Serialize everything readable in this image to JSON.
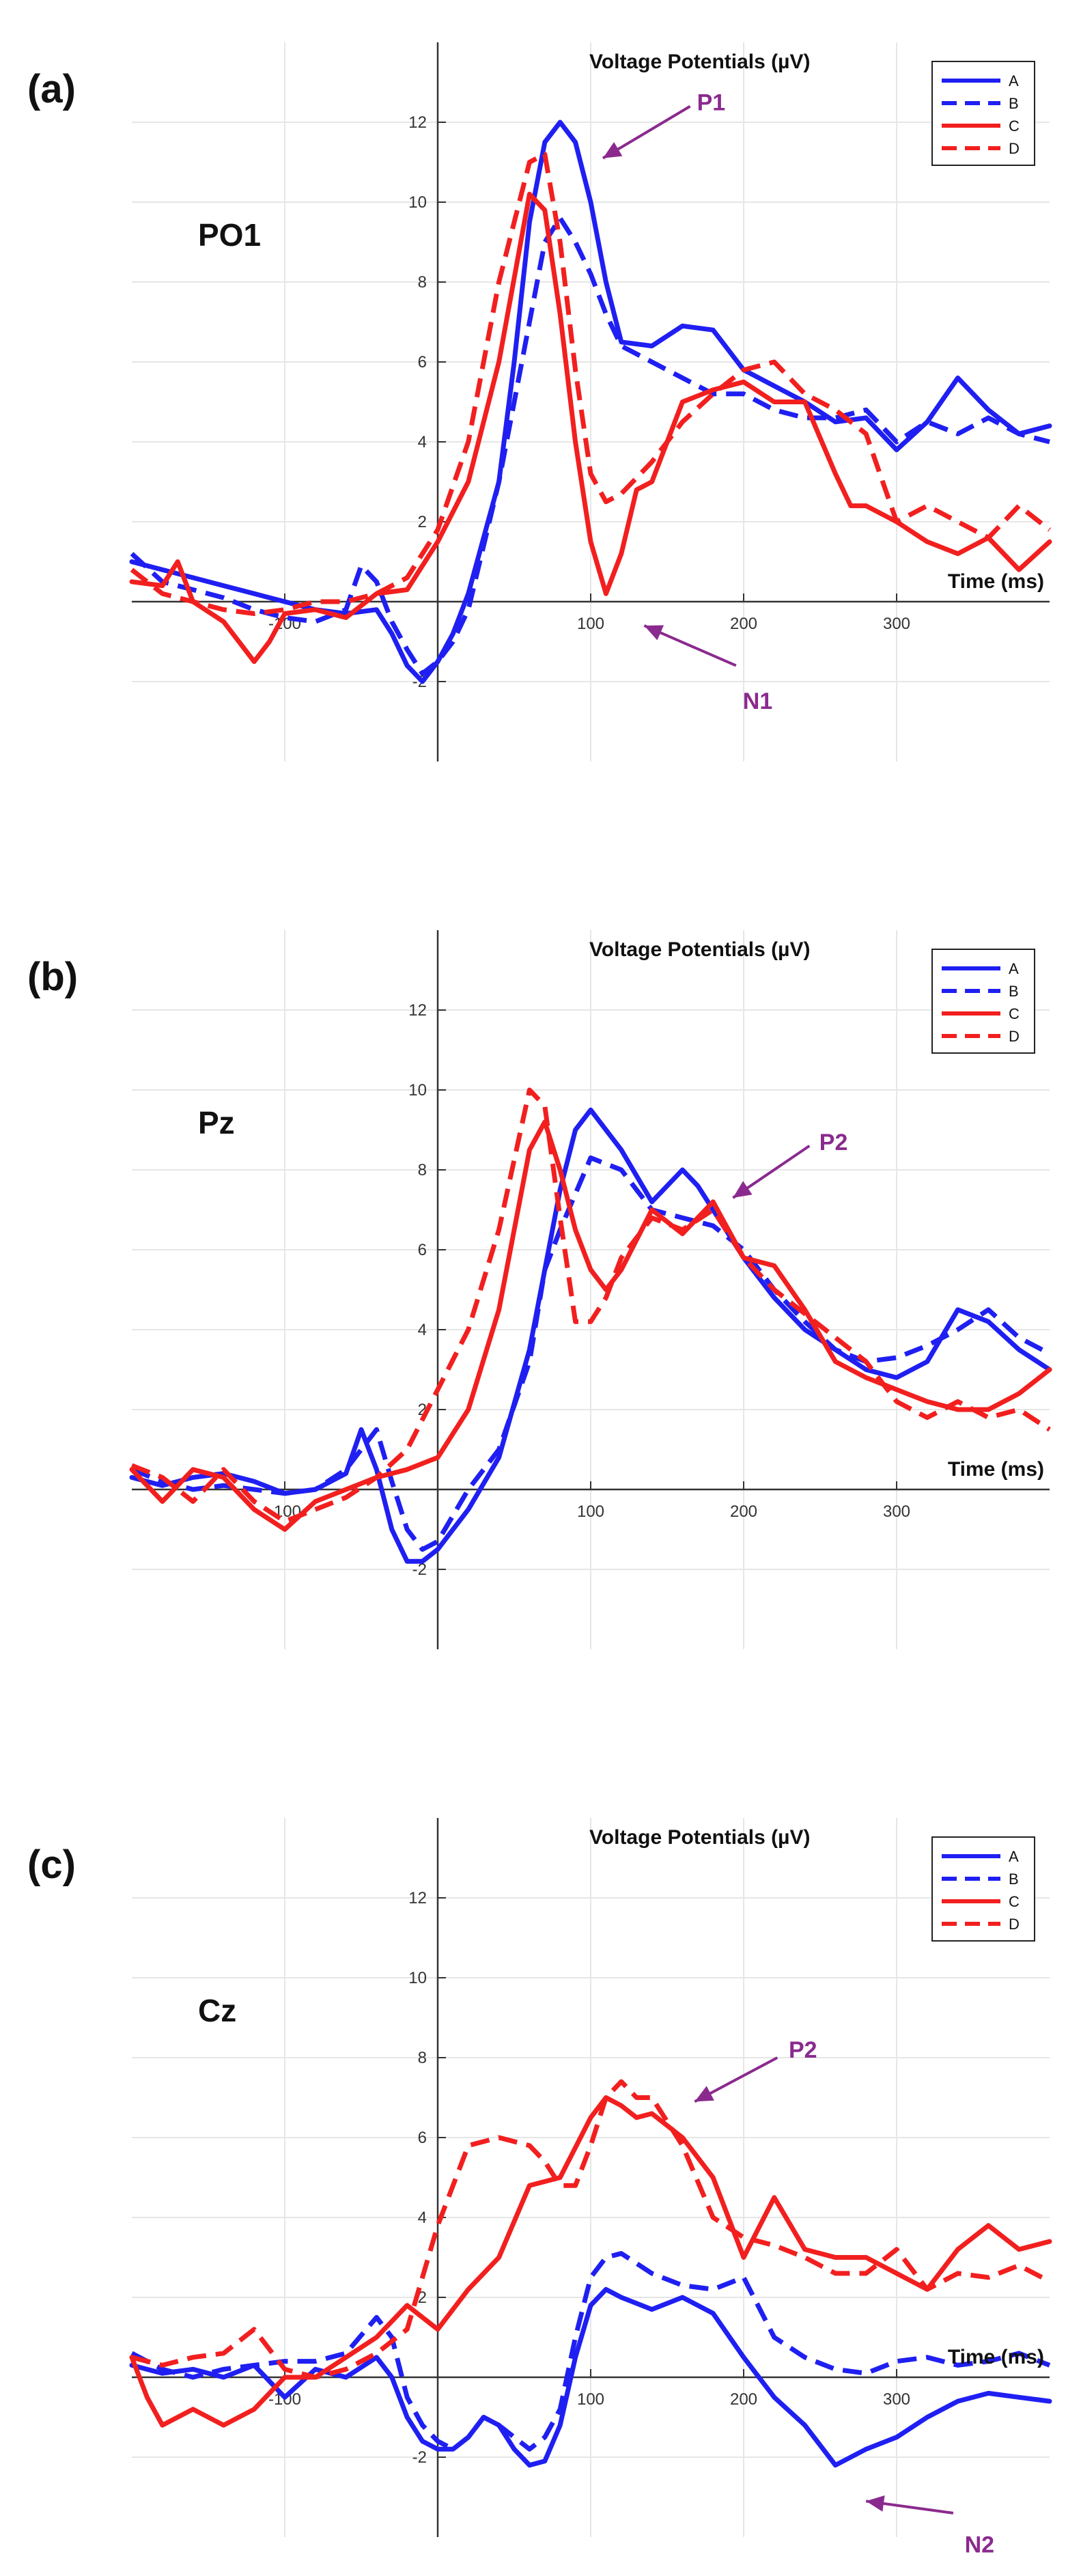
{
  "colors": {
    "blue": "#1f1ff2",
    "red": "#f21f1f",
    "annotation": "#8a2a8e",
    "grid": "#e6e6e6",
    "axis": "#333333"
  },
  "chart_data": [
    {
      "type": "line",
      "panel": "(a)",
      "electrode": "PO1",
      "ylabel": "Voltage Potentials (µV)",
      "xlabel": "Time (ms)",
      "xlim": [
        -200,
        400
      ],
      "ylim": [
        -4,
        14
      ],
      "xticks": [
        -100,
        100,
        200,
        300
      ],
      "xtick_labels": [
        "-100",
        "100",
        "200",
        "300"
      ],
      "yticks": [
        -2,
        2,
        4,
        6,
        8,
        10,
        12
      ],
      "ytick_labels": [
        "-2",
        "2",
        "4",
        "6",
        "8",
        "10",
        "12"
      ],
      "grid": true,
      "legend_position": "top-right",
      "series": [
        {
          "name": "A",
          "color": "#1f1ff2",
          "dash": false,
          "x": [
            -200,
            -180,
            -160,
            -140,
            -120,
            -100,
            -80,
            -60,
            -40,
            -30,
            -20,
            -10,
            0,
            10,
            20,
            40,
            50,
            60,
            70,
            80,
            90,
            100,
            110,
            120,
            140,
            160,
            180,
            200,
            220,
            240,
            260,
            280,
            300,
            320,
            340,
            360,
            380,
            400
          ],
          "y": [
            1,
            0.8,
            0.6,
            0.4,
            0.2,
            0,
            -0.2,
            -0.3,
            -0.2,
            -0.8,
            -1.6,
            -2.0,
            -1.5,
            -0.8,
            0.2,
            3,
            6,
            9.5,
            11.5,
            12,
            11.5,
            10,
            8,
            6.5,
            6.4,
            6.9,
            6.8,
            5.8,
            5.4,
            5,
            4.5,
            4.6,
            3.8,
            4.5,
            5.6,
            4.8,
            4.2,
            4.4
          ]
        },
        {
          "name": "B",
          "color": "#1f1ff2",
          "dash": true,
          "x": [
            -200,
            -180,
            -160,
            -140,
            -120,
            -100,
            -80,
            -60,
            -50,
            -40,
            -30,
            -20,
            -10,
            0,
            10,
            20,
            40,
            60,
            70,
            80,
            90,
            100,
            110,
            120,
            140,
            160,
            180,
            200,
            220,
            240,
            260,
            280,
            300,
            320,
            340,
            360,
            380,
            400
          ],
          "y": [
            1.2,
            0.5,
            0.3,
            0.1,
            -0.2,
            -0.4,
            -0.5,
            -0.2,
            0.9,
            0.5,
            -0.5,
            -1.2,
            -1.8,
            -1.5,
            -1,
            -0.2,
            3,
            7,
            9,
            9.6,
            9,
            8.2,
            7.2,
            6.4,
            6,
            5.6,
            5.2,
            5.2,
            4.8,
            4.6,
            4.6,
            4.8,
            4,
            4.5,
            4.2,
            4.6,
            4.2,
            4
          ]
        },
        {
          "name": "C",
          "color": "#f21f1f",
          "dash": false,
          "x": [
            -200,
            -180,
            -170,
            -160,
            -140,
            -120,
            -110,
            -100,
            -80,
            -60,
            -40,
            -20,
            0,
            20,
            40,
            60,
            70,
            80,
            90,
            100,
            110,
            120,
            130,
            140,
            160,
            180,
            200,
            220,
            240,
            260,
            270,
            280,
            300,
            320,
            340,
            360,
            380,
            400
          ],
          "y": [
            0.5,
            0.4,
            1,
            0,
            -0.5,
            -1.5,
            -1,
            -0.3,
            -0.2,
            -0.4,
            0.2,
            0.3,
            1.5,
            3,
            6,
            10.2,
            9.8,
            7.2,
            4,
            1.5,
            0.2,
            1.2,
            2.8,
            3,
            5,
            5.3,
            5.5,
            5,
            5,
            3.2,
            2.4,
            2.4,
            2,
            1.5,
            1.2,
            1.6,
            0.8,
            1.5
          ]
        },
        {
          "name": "D",
          "color": "#f21f1f",
          "dash": true,
          "x": [
            -200,
            -180,
            -160,
            -140,
            -120,
            -100,
            -80,
            -60,
            -40,
            -20,
            0,
            20,
            40,
            60,
            70,
            80,
            90,
            100,
            110,
            120,
            140,
            160,
            180,
            200,
            220,
            240,
            260,
            280,
            300,
            320,
            340,
            360,
            380,
            400
          ],
          "y": [
            0.8,
            0.2,
            0,
            -0.2,
            -0.3,
            -0.2,
            0,
            0,
            0.2,
            0.6,
            1.8,
            4,
            8,
            11,
            11.2,
            9,
            5.8,
            3.2,
            2.5,
            2.7,
            3.5,
            4.5,
            5.2,
            5.8,
            6,
            5.2,
            4.8,
            4.2,
            2,
            2.4,
            2,
            1.6,
            2.4,
            1.8
          ]
        }
      ],
      "annotations": [
        {
          "text": "P1",
          "x": 165,
          "y": 12.3
        },
        {
          "text": "N1",
          "x": 195,
          "y": -2.0
        }
      ]
    },
    {
      "type": "line",
      "panel": "(b)",
      "electrode": "Pz",
      "ylabel": "Voltage Potentials (µV)",
      "xlabel": "Time (ms)",
      "xlim": [
        -200,
        400
      ],
      "ylim": [
        -4,
        14
      ],
      "xticks": [
        -100,
        100,
        200,
        300
      ],
      "xtick_labels": [
        "-100",
        "100",
        "200",
        "300"
      ],
      "yticks": [
        -2,
        2,
        4,
        6,
        8,
        10,
        12
      ],
      "ytick_labels": [
        "-2",
        "2",
        "4",
        "6",
        "8",
        "10",
        "12"
      ],
      "grid": true,
      "legend_position": "top-right",
      "series": [
        {
          "name": "A",
          "color": "#1f1ff2",
          "dash": false,
          "x": [
            -200,
            -180,
            -160,
            -140,
            -120,
            -100,
            -80,
            -60,
            -50,
            -40,
            -30,
            -20,
            -10,
            0,
            20,
            40,
            60,
            80,
            90,
            100,
            120,
            140,
            160,
            170,
            180,
            200,
            220,
            240,
            260,
            280,
            300,
            320,
            340,
            360,
            380,
            400
          ],
          "y": [
            0.3,
            0.1,
            0.3,
            0.4,
            0.2,
            -0.1,
            0,
            0.4,
            1.5,
            0.5,
            -1,
            -1.8,
            -1.8,
            -1.5,
            -0.5,
            0.8,
            3.5,
            7.5,
            9,
            9.5,
            8.5,
            7.2,
            8,
            7.6,
            7,
            5.8,
            4.8,
            4,
            3.5,
            3,
            2.8,
            3.2,
            4.5,
            4.2,
            3.5,
            3
          ]
        },
        {
          "name": "B",
          "color": "#1f1ff2",
          "dash": true,
          "x": [
            -200,
            -180,
            -160,
            -140,
            -120,
            -100,
            -80,
            -60,
            -40,
            -30,
            -20,
            -10,
            0,
            20,
            40,
            60,
            70,
            80,
            100,
            120,
            140,
            160,
            180,
            200,
            220,
            240,
            260,
            280,
            300,
            320,
            340,
            360,
            380,
            400
          ],
          "y": [
            0.5,
            0.2,
            0,
            0.1,
            0,
            -0.1,
            0,
            0.5,
            1.5,
            0.2,
            -1,
            -1.5,
            -1.3,
            0,
            1,
            3.2,
            5.5,
            6.5,
            8.3,
            8,
            7,
            6.8,
            6.6,
            6,
            5,
            4.2,
            3.5,
            3.2,
            3.3,
            3.6,
            4,
            4.5,
            3.8,
            3.4
          ]
        },
        {
          "name": "C",
          "color": "#f21f1f",
          "dash": false,
          "x": [
            -200,
            -180,
            -160,
            -140,
            -120,
            -100,
            -80,
            -60,
            -40,
            -20,
            0,
            20,
            40,
            60,
            70,
            80,
            90,
            100,
            110,
            120,
            140,
            160,
            180,
            200,
            220,
            240,
            260,
            280,
            300,
            320,
            340,
            360,
            380,
            400
          ],
          "y": [
            0.5,
            -0.3,
            0.5,
            0.3,
            -0.5,
            -1,
            -0.3,
            0,
            0.3,
            0.5,
            0.8,
            2,
            4.5,
            8.5,
            9.2,
            8,
            6.5,
            5.5,
            5,
            5.5,
            7,
            6.4,
            7.2,
            5.8,
            5.6,
            4.5,
            3.2,
            2.8,
            2.5,
            2.2,
            2,
            2,
            2.4,
            3
          ]
        },
        {
          "name": "D",
          "color": "#f21f1f",
          "dash": true,
          "x": [
            -200,
            -180,
            -160,
            -140,
            -120,
            -100,
            -80,
            -60,
            -40,
            -20,
            0,
            20,
            40,
            60,
            70,
            80,
            90,
            100,
            110,
            120,
            140,
            160,
            180,
            200,
            220,
            240,
            260,
            280,
            300,
            320,
            340,
            360,
            380,
            400
          ],
          "y": [
            0.6,
            0.3,
            -0.3,
            0.5,
            -0.3,
            -0.8,
            -0.5,
            -0.2,
            0.3,
            1,
            2.5,
            4,
            6.5,
            10,
            9.6,
            6.8,
            4.2,
            4.2,
            4.8,
            5.8,
            6.8,
            6.5,
            7,
            5.8,
            5,
            4.4,
            3.8,
            3.2,
            2.2,
            1.8,
            2.2,
            1.8,
            2,
            1.5
          ]
        }
      ],
      "annotations": [
        {
          "text": "P2",
          "x": 245,
          "y": 8.5
        }
      ]
    },
    {
      "type": "line",
      "panel": "(c)",
      "electrode": "Cz",
      "ylabel": "Voltage Potentials (µV)",
      "xlabel": "Time (ms)",
      "xlim": [
        -200,
        400
      ],
      "ylim": [
        -4,
        14
      ],
      "xticks": [
        -100,
        100,
        200,
        300
      ],
      "xtick_labels": [
        "-100",
        "100",
        "200",
        "300"
      ],
      "yticks": [
        -2,
        2,
        4,
        6,
        8,
        10,
        12
      ],
      "ytick_labels": [
        "-2",
        "2",
        "4",
        "6",
        "8",
        "10",
        "12"
      ],
      "grid": true,
      "legend_position": "top-right",
      "series": [
        {
          "name": "A",
          "color": "#1f1ff2",
          "dash": false,
          "x": [
            -200,
            -180,
            -160,
            -140,
            -120,
            -100,
            -80,
            -60,
            -40,
            -30,
            -20,
            -10,
            0,
            10,
            20,
            30,
            40,
            50,
            60,
            70,
            80,
            90,
            100,
            110,
            120,
            140,
            160,
            180,
            200,
            220,
            240,
            260,
            280,
            300,
            320,
            340,
            360,
            380,
            400
          ],
          "y": [
            0.3,
            0.1,
            0.2,
            0,
            0.3,
            -0.5,
            0.2,
            0,
            0.5,
            0,
            -1,
            -1.6,
            -1.8,
            -1.8,
            -1.5,
            -1,
            -1.2,
            -1.8,
            -2.2,
            -2.1,
            -1.2,
            0.5,
            1.8,
            2.2,
            2.0,
            1.7,
            2,
            1.6,
            0.5,
            -0.5,
            -1.2,
            -2.2,
            -1.8,
            -1.5,
            -1,
            -0.6,
            -0.4,
            -0.5,
            -0.6
          ]
        },
        {
          "name": "B",
          "color": "#1f1ff2",
          "dash": true,
          "x": [
            -200,
            -180,
            -160,
            -140,
            -120,
            -100,
            -80,
            -60,
            -40,
            -30,
            -20,
            -10,
            0,
            10,
            20,
            30,
            40,
            50,
            60,
            70,
            80,
            90,
            100,
            110,
            120,
            140,
            160,
            180,
            200,
            220,
            240,
            260,
            280,
            300,
            320,
            340,
            360,
            380,
            400
          ],
          "y": [
            0.6,
            0.2,
            0,
            0.2,
            0.3,
            0.4,
            0.4,
            0.6,
            1.5,
            1,
            -0.5,
            -1.2,
            -1.6,
            -1.8,
            -1.5,
            -1,
            -1.2,
            -1.5,
            -1.8,
            -1.5,
            -0.8,
            1,
            2.5,
            3,
            3.1,
            2.6,
            2.3,
            2.2,
            2.5,
            1,
            0.5,
            0.2,
            0.1,
            0.4,
            0.5,
            0.3,
            0.4,
            0.6,
            0.3
          ]
        },
        {
          "name": "C",
          "color": "#f21f1f",
          "dash": false,
          "x": [
            -200,
            -190,
            -180,
            -160,
            -140,
            -120,
            -100,
            -80,
            -60,
            -40,
            -20,
            0,
            20,
            40,
            60,
            80,
            100,
            110,
            120,
            130,
            140,
            160,
            180,
            200,
            220,
            240,
            260,
            280,
            300,
            320,
            340,
            360,
            380,
            400
          ],
          "y": [
            0.5,
            -0.5,
            -1.2,
            -0.8,
            -1.2,
            -0.8,
            0,
            0,
            0.5,
            1,
            1.8,
            1.2,
            2.2,
            3,
            4.8,
            5,
            6.5,
            7,
            6.8,
            6.5,
            6.6,
            6,
            5,
            3,
            4.5,
            3.2,
            3,
            3,
            2.6,
            2.2,
            3.2,
            3.8,
            3.2,
            3.4
          ]
        },
        {
          "name": "D",
          "color": "#f21f1f",
          "dash": true,
          "x": [
            -200,
            -180,
            -160,
            -140,
            -120,
            -100,
            -80,
            -60,
            -40,
            -20,
            0,
            20,
            40,
            60,
            70,
            80,
            90,
            100,
            110,
            120,
            130,
            140,
            160,
            180,
            200,
            220,
            240,
            260,
            280,
            300,
            320,
            340,
            360,
            380,
            400
          ],
          "y": [
            0.5,
            0.3,
            0.5,
            0.6,
            1.2,
            0.2,
            0,
            0.2,
            0.6,
            1.2,
            3.8,
            5.8,
            6,
            5.8,
            5.4,
            4.8,
            4.8,
            5.8,
            7,
            7.4,
            7,
            7,
            5.8,
            4,
            3.5,
            3.3,
            3,
            2.6,
            2.6,
            3.2,
            2.2,
            2.6,
            2.5,
            2.8,
            2.4
          ]
        }
      ],
      "annotations": [
        {
          "text": "P2",
          "x": 225,
          "y": 8.0
        },
        {
          "text": "N2",
          "x": 340,
          "y": -3.7
        }
      ]
    }
  ]
}
